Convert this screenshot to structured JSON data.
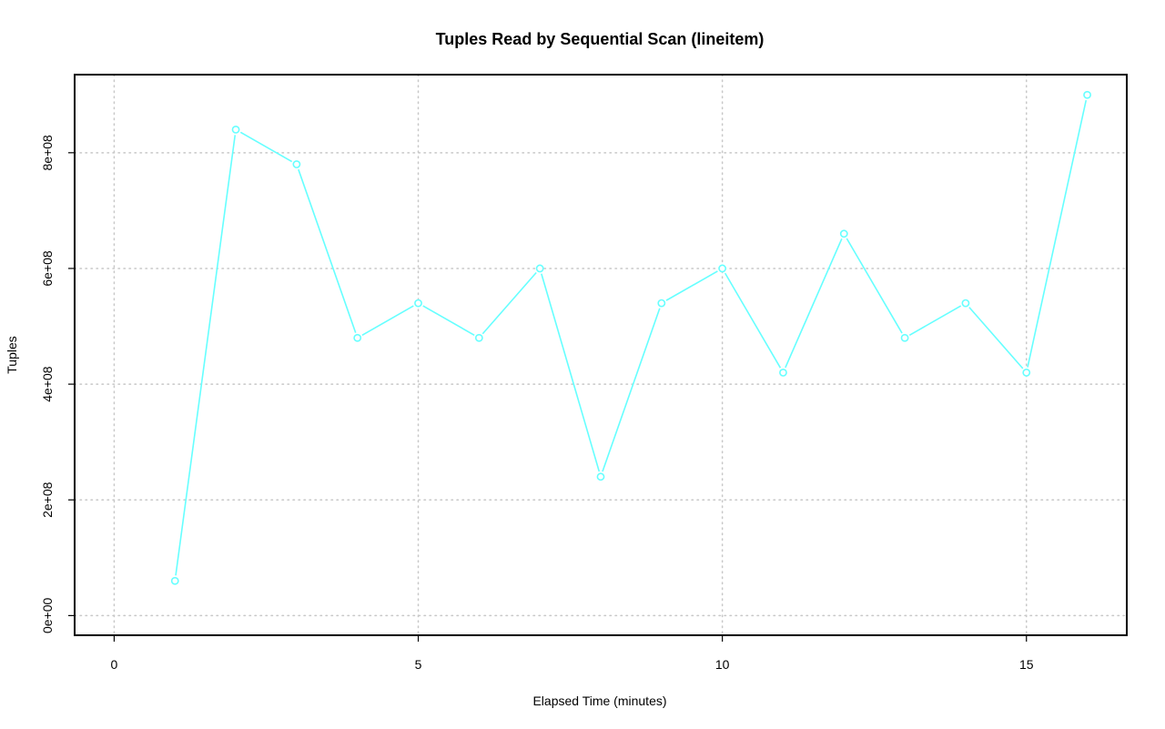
{
  "chart_data": {
    "type": "line",
    "title": "Tuples Read by Sequential Scan (lineitem)",
    "xlabel": "Elapsed Time (minutes)",
    "ylabel": "Tuples",
    "xlim": [
      -0.65,
      16.65
    ],
    "ylim": [
      -34000000,
      935000000
    ],
    "xticks": [
      0,
      5,
      10,
      15
    ],
    "xtick_labels": [
      "0",
      "5",
      "10",
      "15"
    ],
    "yticks": [
      0,
      200000000,
      400000000,
      600000000,
      800000000
    ],
    "ytick_labels": [
      "0e+00",
      "2e+08",
      "4e+08",
      "6e+08",
      "8e+08"
    ],
    "grid": true,
    "series": [
      {
        "color": "#66ffff",
        "marker": "open-circle",
        "x": [
          1,
          2,
          3,
          4,
          5,
          6,
          7,
          8,
          9,
          10,
          11,
          12,
          13,
          14,
          15,
          16
        ],
        "values": [
          60000000,
          840000000,
          780000000,
          480000000,
          540000000,
          480000000,
          600000000,
          240000000,
          540000000,
          600000000,
          420000000,
          660000000,
          480000000,
          540000000,
          420000000,
          900000000
        ]
      }
    ]
  }
}
